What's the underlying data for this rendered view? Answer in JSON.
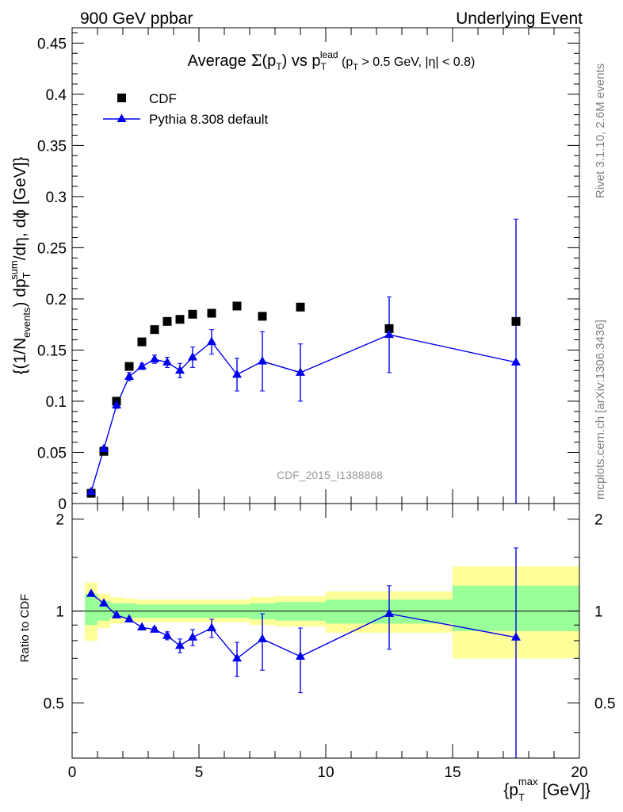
{
  "header": {
    "left": "900 GeV ppbar",
    "right": "Underlying Event"
  },
  "side_labels": {
    "rivet": "Rivet 3.1.10,  2.6M events",
    "mcplots": "mcplots.cern.ch [arXiv:1306.3436]"
  },
  "watermark": "CDF_2015_I1388868",
  "colors": {
    "data": "#000000",
    "mc": "#0000ee",
    "band_outer": "#ffff99",
    "band_inner": "#99ff99"
  },
  "chart_data": {
    "type": "scatter",
    "xlim": [
      0,
      20
    ],
    "main": {
      "ylim": [
        0,
        0.465
      ],
      "yticks": [
        0,
        0.05,
        0.1,
        0.15,
        0.2,
        0.25,
        0.3,
        0.35,
        0.4,
        0.45
      ],
      "ytick_labels": [
        "0",
        "0.05",
        "0.1",
        "0.15",
        "0.2",
        "0.25",
        "0.3",
        "0.35",
        "0.4",
        "0.45"
      ]
    },
    "ratio": {
      "ylim": [
        0.33,
        2.25
      ],
      "yticks": [
        0.5,
        1,
        2
      ],
      "ytick_labels": [
        "0.5",
        "1",
        "2"
      ]
    },
    "xticks": [
      0,
      5,
      10,
      15,
      20
    ],
    "xtick_labels": [
      "0",
      "5",
      "10",
      "15",
      "20"
    ],
    "legend": {
      "placement": "top-left",
      "entries": [
        "CDF",
        "Pythia 8.308 default"
      ]
    },
    "series": [
      {
        "name": "CDF",
        "marker": "square",
        "x": [
          0.75,
          1.25,
          1.75,
          2.25,
          2.75,
          3.25,
          3.75,
          4.25,
          4.75,
          5.5,
          6.5,
          7.5,
          9.0,
          12.5,
          17.5
        ],
        "y": [
          0.01,
          0.051,
          0.1,
          0.134,
          0.158,
          0.17,
          0.178,
          0.18,
          0.185,
          0.186,
          0.193,
          0.183,
          0.192,
          0.171,
          0.178
        ]
      },
      {
        "name": "Pythia 8.308 default",
        "marker": "triangle",
        "x": [
          0.75,
          1.25,
          1.75,
          2.25,
          2.75,
          3.25,
          3.75,
          4.25,
          4.75,
          5.5,
          6.5,
          7.5,
          9.0,
          12.5,
          17.5
        ],
        "y": [
          0.0115,
          0.0535,
          0.096,
          0.124,
          0.134,
          0.141,
          0.138,
          0.13,
          0.143,
          0.158,
          0.126,
          0.139,
          0.128,
          0.165,
          0.138
        ],
        "yerr": [
          0.001,
          0.002,
          0.003,
          0.004,
          0.003,
          0.004,
          0.005,
          0.007,
          0.01,
          0.012,
          0.016,
          0.029,
          0.028,
          0.037,
          0.14
        ]
      }
    ],
    "ratio_series": {
      "name": "Pythia 8.308 default",
      "x": [
        0.75,
        1.25,
        1.75,
        2.25,
        2.75,
        3.25,
        3.75,
        4.25,
        4.75,
        5.5,
        6.5,
        7.5,
        9.0,
        12.5,
        17.5
      ],
      "y": [
        1.14,
        1.06,
        0.97,
        0.94,
        0.885,
        0.87,
        0.83,
        0.77,
        0.82,
        0.88,
        0.7,
        0.81,
        0.71,
        0.98,
        0.82
      ],
      "yerr": [
        0.01,
        0.01,
        0.01,
        0.01,
        0.01,
        0.015,
        0.025,
        0.04,
        0.05,
        0.06,
        0.09,
        0.17,
        0.17,
        0.23,
        0.79
      ]
    },
    "ratio_bands": [
      {
        "x0": 0.5,
        "x1": 1.0,
        "outer": [
          0.8,
          1.24
        ],
        "inner": [
          0.9,
          1.14
        ]
      },
      {
        "x0": 1.0,
        "x1": 1.5,
        "outer": [
          0.88,
          1.14
        ],
        "inner": [
          0.93,
          1.08
        ]
      },
      {
        "x0": 1.5,
        "x1": 2.0,
        "outer": [
          0.91,
          1.11
        ],
        "inner": [
          0.95,
          1.06
        ]
      },
      {
        "x0": 2.0,
        "x1": 2.5,
        "outer": [
          0.92,
          1.1
        ],
        "inner": [
          0.95,
          1.06
        ]
      },
      {
        "x0": 2.5,
        "x1": 3.0,
        "outer": [
          0.92,
          1.09
        ],
        "inner": [
          0.95,
          1.05
        ]
      },
      {
        "x0": 3.0,
        "x1": 7.0,
        "outer": [
          0.92,
          1.09
        ],
        "inner": [
          0.95,
          1.05
        ]
      },
      {
        "x0": 7.0,
        "x1": 8.0,
        "outer": [
          0.9,
          1.11
        ],
        "inner": [
          0.94,
          1.06
        ]
      },
      {
        "x0": 8.0,
        "x1": 10.0,
        "outer": [
          0.89,
          1.12
        ],
        "inner": [
          0.93,
          1.07
        ]
      },
      {
        "x0": 10.0,
        "x1": 15.0,
        "outer": [
          0.85,
          1.16
        ],
        "inner": [
          0.91,
          1.09
        ]
      },
      {
        "x0": 15.0,
        "x1": 20.0,
        "outer": [
          0.7,
          1.4
        ],
        "inner": [
          0.86,
          1.21
        ]
      }
    ]
  }
}
